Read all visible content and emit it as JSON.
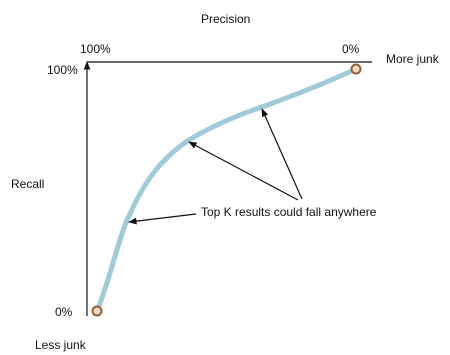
{
  "labels": {
    "top_axis_title": "Precision",
    "precision_high": "100%",
    "precision_low": "0%",
    "more_junk": "More junk",
    "recall_high": "100%",
    "left_axis_title": "Recall",
    "recall_low": "0%",
    "less_junk": "Less junk",
    "annotation": "Top K results could fall anywhere"
  },
  "colors": {
    "curve": "#9fcbd9",
    "axis": "#111111",
    "endpoint_fill": "#f1d9c8",
    "endpoint_stroke": "#9a5a32"
  }
}
